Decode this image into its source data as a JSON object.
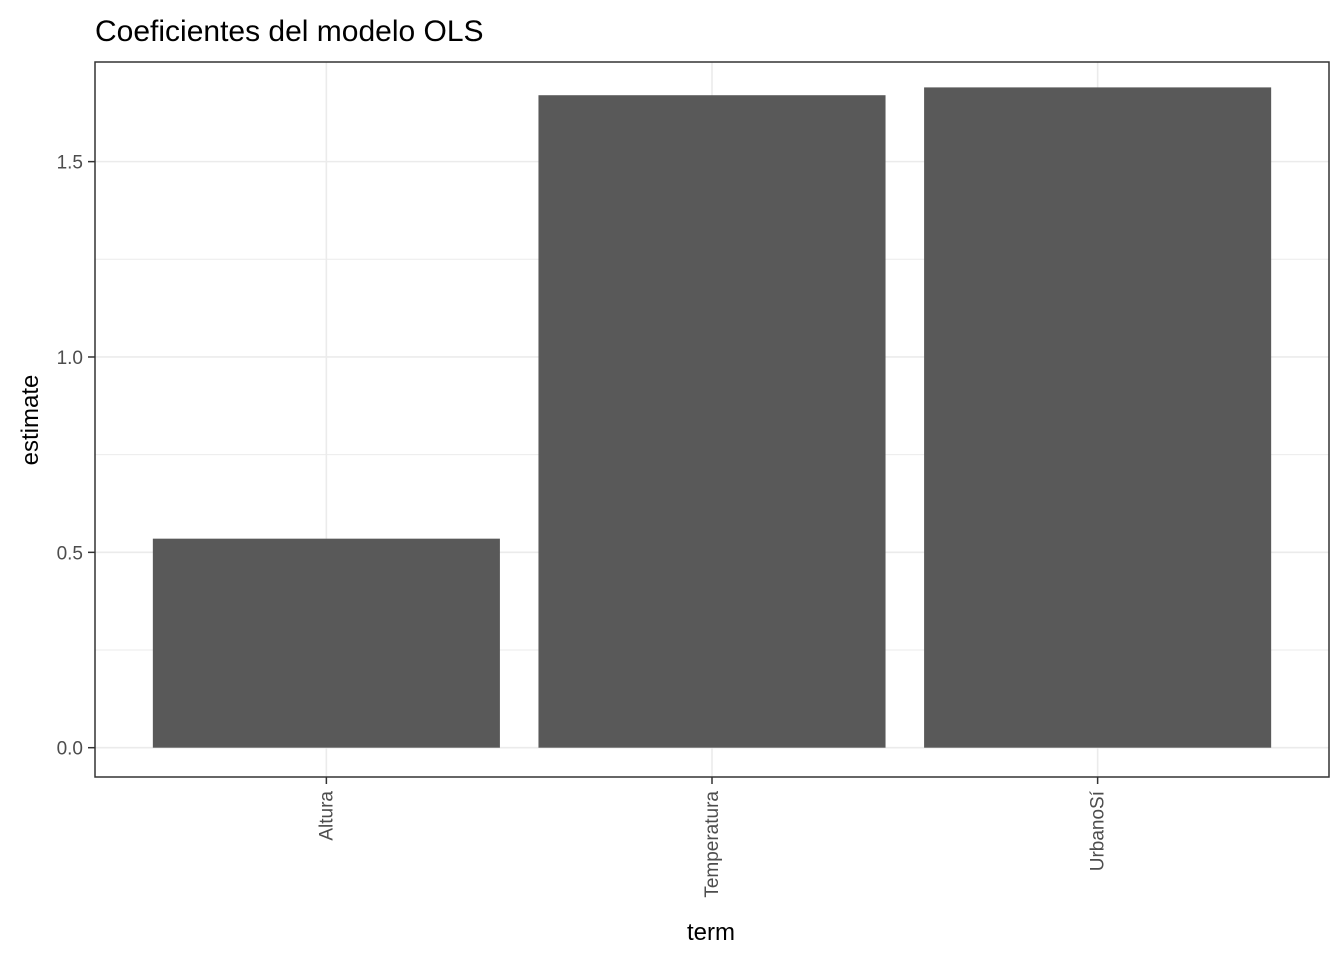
{
  "chart_data": {
    "type": "bar",
    "title": "Coeficientes del modelo OLS",
    "xlabel": "term",
    "ylabel": "estimate",
    "categories": [
      "Altura",
      "Temperatura",
      "UrbanoSí"
    ],
    "values": [
      0.535,
      1.67,
      1.69
    ],
    "ylim": [
      -0.075,
      1.755
    ],
    "yticks": [
      0.0,
      0.5,
      1.0,
      1.5
    ],
    "ytick_labels": [
      "0.0",
      "0.5",
      "1.0",
      "1.5"
    ],
    "grid": true,
    "legend": "none",
    "colors": {
      "bar": "#595959",
      "grid": "#ebebeb",
      "border": "#333333",
      "tick_text": "#4d4d4d"
    }
  }
}
